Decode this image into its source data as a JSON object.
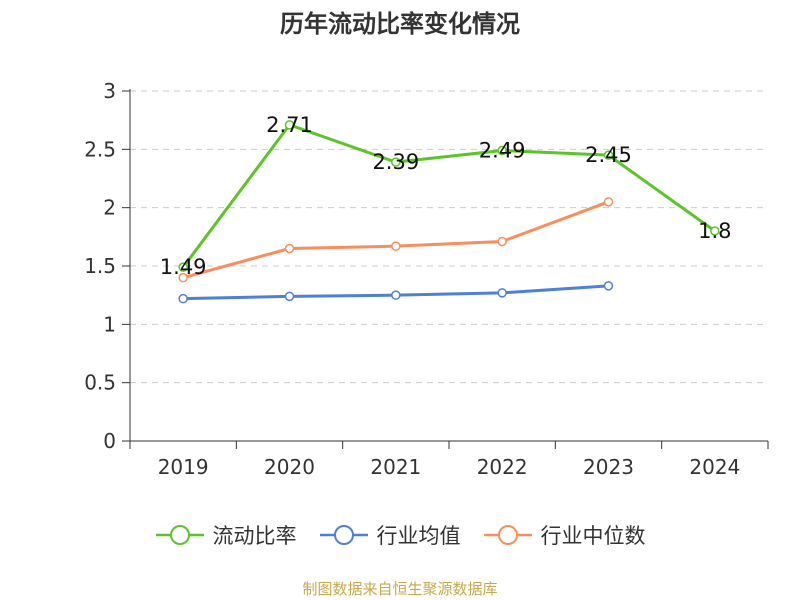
{
  "title": "历年流动比率变化情况",
  "source": "制图数据来自恒生聚源数据库",
  "chart_data": {
    "type": "line",
    "title": "历年流动比率变化情况",
    "categories": [
      "2019",
      "2020",
      "2021",
      "2022",
      "2023",
      "2024"
    ],
    "ylim": [
      0,
      3
    ],
    "yticks": [
      0,
      0.5,
      1,
      1.5,
      2,
      2.5,
      3
    ],
    "ytick_labels": [
      "0",
      "0.5",
      "1",
      "1.5",
      "2",
      "2.5",
      "3"
    ],
    "grid": true,
    "legend_position": "bottom",
    "series": [
      {
        "name": "流动比率",
        "color": "#5bc428",
        "values": [
          1.49,
          2.71,
          2.39,
          2.49,
          2.45,
          1.8
        ],
        "labels": [
          "1.49",
          "2.71",
          "2.39",
          "2.49",
          "2.45",
          "1.8"
        ]
      },
      {
        "name": "行业均值",
        "color": "#4f7fd9",
        "values": [
          1.22,
          1.24,
          1.25,
          1.27,
          1.33,
          null
        ]
      },
      {
        "name": "行业中位数",
        "color": "#f98e5c",
        "values": [
          1.4,
          1.65,
          1.67,
          1.71,
          2.05,
          null
        ]
      }
    ]
  }
}
